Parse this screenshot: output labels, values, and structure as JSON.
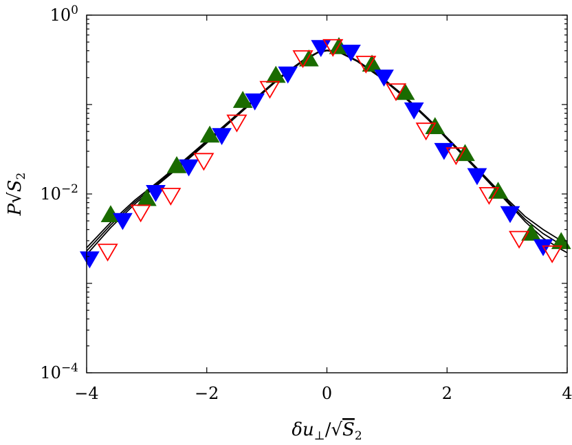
{
  "chart_data": {
    "type": "scatter",
    "title": "",
    "xlabel": "δu⊥/√S2",
    "ylabel": "P√S2",
    "xlim": [
      -4,
      4
    ],
    "ylim": [
      0.0001,
      1
    ],
    "y_scale": "log",
    "grid": false,
    "legend": "none",
    "x_ticks": [
      {
        "value": -4,
        "label": "−4"
      },
      {
        "value": -2,
        "label": "−2"
      },
      {
        "value": 0,
        "label": "0"
      },
      {
        "value": 2,
        "label": "2"
      },
      {
        "value": 4,
        "label": "4"
      }
    ],
    "y_ticks": [
      {
        "value": 1,
        "base": "10",
        "exp": "0"
      },
      {
        "value": 0.01,
        "base": "10",
        "exp": "−2"
      },
      {
        "value": 0.0001,
        "base": "10",
        "exp": "−4"
      }
    ],
    "series": [
      {
        "marker": "triangle-up",
        "filled": true,
        "color": "#1a6b00",
        "points": [
          [
            -3.6,
            0.0058
          ],
          [
            -3.0,
            0.0088
          ],
          [
            -2.5,
            0.0205
          ],
          [
            -1.95,
            0.045
          ],
          [
            -1.4,
            0.11
          ],
          [
            -0.85,
            0.21
          ],
          [
            -0.3,
            0.32
          ],
          [
            0.2,
            0.44
          ],
          [
            0.75,
            0.28
          ],
          [
            1.3,
            0.135
          ],
          [
            1.8,
            0.056
          ],
          [
            2.3,
            0.028
          ],
          [
            2.85,
            0.0106
          ],
          [
            3.4,
            0.0036
          ],
          [
            3.9,
            0.0029
          ]
        ]
      },
      {
        "marker": "triangle-down",
        "filled": true,
        "color": "#0000ff",
        "points": [
          [
            -3.95,
            0.0019
          ],
          [
            -3.4,
            0.0051
          ],
          [
            -2.85,
            0.0105
          ],
          [
            -2.3,
            0.0203
          ],
          [
            -1.75,
            0.0455
          ],
          [
            -1.2,
            0.111
          ],
          [
            -0.65,
            0.222
          ],
          [
            -0.1,
            0.439
          ],
          [
            0.4,
            0.39
          ],
          [
            0.95,
            0.205
          ],
          [
            1.45,
            0.088
          ],
          [
            1.95,
            0.031
          ],
          [
            2.5,
            0.0162
          ],
          [
            3.05,
            0.0061
          ],
          [
            3.6,
            0.0026
          ]
        ]
      },
      {
        "marker": "triangle-down",
        "filled": false,
        "color": "#ff0000",
        "points": [
          [
            -3.65,
            0.0023
          ],
          [
            -3.1,
            0.0063
          ],
          [
            -2.6,
            0.0097
          ],
          [
            -2.05,
            0.0238
          ],
          [
            -1.5,
            0.064
          ],
          [
            -0.95,
            0.152
          ],
          [
            -0.4,
            0.335
          ],
          [
            0.1,
            0.447
          ],
          [
            0.65,
            0.291
          ],
          [
            1.15,
            0.143
          ],
          [
            1.65,
            0.052
          ],
          [
            2.15,
            0.0275
          ],
          [
            2.7,
            0.0099
          ],
          [
            3.2,
            0.0032
          ],
          [
            3.75,
            0.0022
          ]
        ]
      }
    ],
    "curves": [
      {
        "color": "#000000",
        "points": [
          [
            -4.0,
            0.0021
          ],
          [
            -3.6,
            0.0042
          ],
          [
            -3.2,
            0.0077
          ],
          [
            -2.8,
            0.0129
          ],
          [
            -2.4,
            0.0216
          ],
          [
            -2.0,
            0.0372
          ],
          [
            -1.6,
            0.0646
          ],
          [
            -1.2,
            0.112
          ],
          [
            -0.8,
            0.193
          ],
          [
            -0.4,
            0.305
          ],
          [
            -0.15,
            0.38
          ],
          [
            0.0,
            0.4
          ],
          [
            0.2,
            0.385
          ],
          [
            0.5,
            0.305
          ],
          [
            0.9,
            0.199
          ],
          [
            1.3,
            0.119
          ],
          [
            1.7,
            0.0661
          ],
          [
            2.1,
            0.0352
          ],
          [
            2.5,
            0.0186
          ],
          [
            2.9,
            0.0096
          ],
          [
            3.3,
            0.0049
          ],
          [
            3.6,
            0.0032
          ],
          [
            3.9,
            0.0024
          ],
          [
            4.0,
            0.0022
          ]
        ]
      },
      {
        "color": "#000000",
        "points": [
          [
            -4.0,
            0.0023
          ],
          [
            -3.6,
            0.0045
          ],
          [
            -3.2,
            0.0081
          ],
          [
            -2.8,
            0.0134
          ],
          [
            -2.4,
            0.0224
          ],
          [
            -2.0,
            0.0383
          ],
          [
            -1.6,
            0.066
          ],
          [
            -1.2,
            0.114
          ],
          [
            -0.8,
            0.196
          ],
          [
            -0.4,
            0.309
          ],
          [
            -0.15,
            0.383
          ],
          [
            0.0,
            0.403
          ],
          [
            0.2,
            0.388
          ],
          [
            0.5,
            0.308
          ],
          [
            0.9,
            0.202
          ],
          [
            1.3,
            0.121
          ],
          [
            1.7,
            0.0672
          ],
          [
            2.1,
            0.0358
          ],
          [
            2.5,
            0.019
          ],
          [
            2.9,
            0.0099
          ],
          [
            3.3,
            0.0052
          ],
          [
            3.6,
            0.0036
          ],
          [
            3.9,
            0.0027
          ],
          [
            4.0,
            0.0025
          ]
        ]
      },
      {
        "color": "#000000",
        "points": [
          [
            -4.0,
            0.0025
          ],
          [
            -3.6,
            0.0048
          ],
          [
            -3.2,
            0.0085
          ],
          [
            -2.8,
            0.0139
          ],
          [
            -2.4,
            0.0231
          ],
          [
            -2.0,
            0.0394
          ],
          [
            -1.6,
            0.0674
          ],
          [
            -1.2,
            0.116
          ],
          [
            -0.8,
            0.199
          ],
          [
            -0.4,
            0.313
          ],
          [
            -0.15,
            0.386
          ],
          [
            0.0,
            0.406
          ],
          [
            0.2,
            0.391
          ],
          [
            0.5,
            0.311
          ],
          [
            0.9,
            0.205
          ],
          [
            1.3,
            0.123
          ],
          [
            1.7,
            0.0684
          ],
          [
            2.1,
            0.0365
          ],
          [
            2.5,
            0.0194
          ],
          [
            2.9,
            0.0102
          ],
          [
            3.3,
            0.0056
          ],
          [
            3.6,
            0.004
          ],
          [
            3.9,
            0.003
          ],
          [
            4.0,
            0.0028
          ]
        ]
      }
    ]
  }
}
